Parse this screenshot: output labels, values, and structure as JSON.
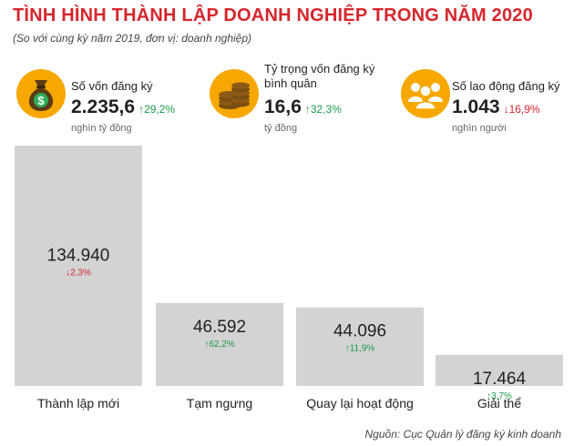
{
  "header": {
    "title": "TÌNH HÌNH THÀNH LẬP DOANH NGHIỆP TRONG NĂM 2020",
    "subtitle": "(So với cùng kỳ năm 2019, đơn vị: doanh nghiệp)"
  },
  "stats": [
    {
      "label": "Số vốn đăng ký",
      "value": "2.235,6",
      "change": "↑29,2%",
      "direction": "up",
      "unit": "nghìn tỷ đồng",
      "icon": "money-bag-icon"
    },
    {
      "label": "Tỷ trọng vốn đăng ký bình quân",
      "value": "16,6",
      "change": "↑32,3%",
      "direction": "up",
      "unit": "tỷ đồng",
      "icon": "coin-stack-icon"
    },
    {
      "label": "Số lao động đăng ký",
      "value": "1.043",
      "change": "↓16,9%",
      "direction": "down",
      "unit": "nghìn người",
      "icon": "people-group-icon"
    }
  ],
  "chart_data": {
    "type": "bar",
    "categories": [
      "Thành lập mới",
      "Tạm ngưng",
      "Quay lại hoạt động",
      "Giải thể"
    ],
    "values": [
      134940,
      46592,
      44096,
      17464
    ],
    "value_labels": [
      "134.940",
      "46.592",
      "44.096",
      "17.464"
    ],
    "changes": [
      {
        "text": "↓2,3%",
        "direction": "down"
      },
      {
        "text": "↑62,2%",
        "direction": "up"
      },
      {
        "text": "↑11,9%",
        "direction": "up"
      },
      {
        "text": "↑3,7%",
        "direction": "up"
      }
    ],
    "ylim": [
      0,
      134940
    ],
    "grid": false,
    "legend": "none",
    "title": "",
    "xlabel": "",
    "ylabel": ""
  },
  "colors": {
    "title": "#d6262d",
    "bar": "#d3d3d3",
    "up": "#1a9b4b",
    "down": "#d6262d",
    "icon_circle": "#f6a800",
    "icon_dark": "#5a3b14"
  },
  "footer": {
    "source": "Nguồn: Cục Quản lý đăng ký kinh doanh"
  }
}
